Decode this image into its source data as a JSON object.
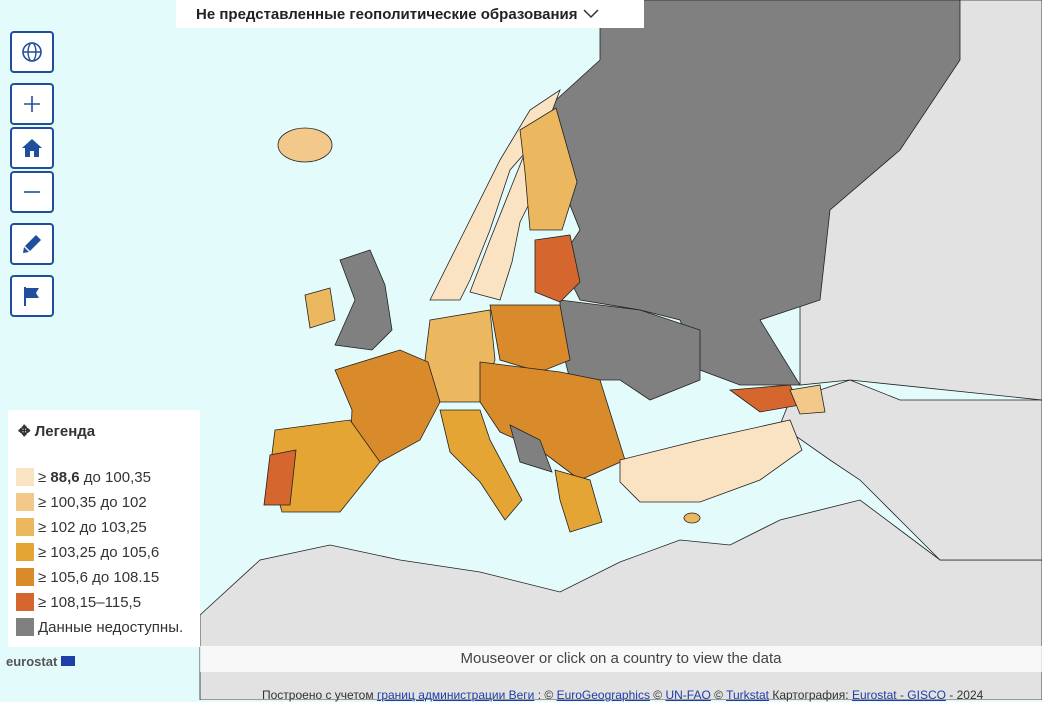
{
  "dropdown": {
    "label": "Не представленные геополитические образования"
  },
  "legend": {
    "title": "Легенда",
    "items": [
      {
        "color": "#fae3c3",
        "text": [
          "≥ ",
          "88,6",
          " до 100,35"
        ]
      },
      {
        "color": "#f2c98b",
        "text": [
          "≥ 100,35 до 102"
        ]
      },
      {
        "color": "#ebb75f",
        "text": [
          "≥ 102 до 103,25"
        ]
      },
      {
        "color": "#e4a535",
        "text": [
          "≥ 103,25 до 105,6"
        ]
      },
      {
        "color": "#d98b2b",
        "text": [
          "≥ 105,6 до 108.15"
        ]
      },
      {
        "color": "#d5662e",
        "text": [
          "≥ 108,15–115,5"
        ]
      },
      {
        "color": "#808080",
        "text": [
          "Данные недоступны."
        ]
      }
    ]
  },
  "hint": "Mouseover or click on a country to view the data",
  "logo": "eurostat",
  "footer": [
    "Построено с учетом ",
    "границ администрации Веги",
    " : © ",
    "EuroGeographics",
    " © ",
    "UN-FAO",
    " © ",
    "Turkstat",
    " Картография: ",
    "Eurostat - GISCO",
    " - 2024"
  ]
}
